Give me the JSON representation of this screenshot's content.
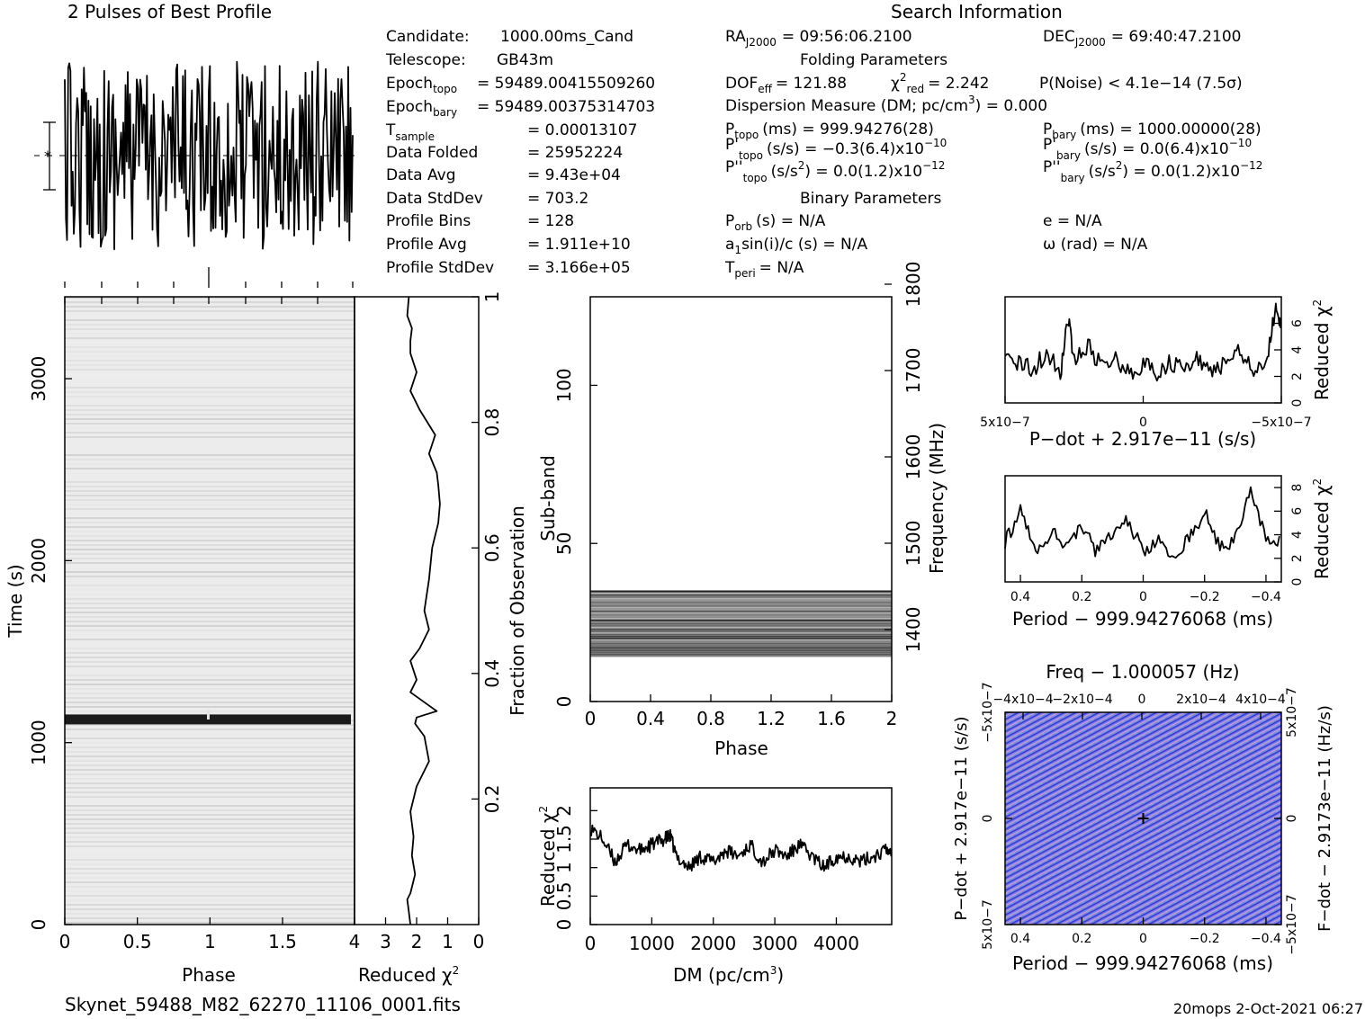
{
  "header": {
    "profile_title": "2 Pulses of Best Profile",
    "search_title": "Search Information"
  },
  "params_left": [
    {
      "label": "Candidate:",
      "value": "1000.00ms_Cand"
    },
    {
      "label": "Telescope:",
      "value": "GB43m"
    },
    {
      "label": "Epoch",
      "sub": "topo",
      "value": "= 59489.00415509260"
    },
    {
      "label": "Epoch",
      "sub": "bary",
      "value": "= 59489.00375314703"
    },
    {
      "label": "T",
      "sub": "sample",
      "value": "=   0.00013107"
    },
    {
      "label": "Data Folded",
      "value": "=   25952224"
    },
    {
      "label": "Data Avg",
      "value": "=   9.43e+04"
    },
    {
      "label": "Data StdDev",
      "value": "=   703.2"
    },
    {
      "label": "Profile Bins",
      "value": "=   128"
    },
    {
      "label": "Profile Avg",
      "value": "=   1.911e+10"
    },
    {
      "label": "Profile StdDev",
      "value": "=   3.166e+05"
    }
  ],
  "search_info": {
    "ra": "RA",
    "ra_sub": "J2000",
    "ra_value": "= 09:56:06.2100",
    "dec": "DEC",
    "dec_sub": "J2000",
    "dec_value": "= 69:40:47.2100",
    "folding_title": "Folding Parameters",
    "dof": "DOF",
    "dof_sub": "eff",
    "dof_value": "= 121.88",
    "chi": "χ",
    "chi_sup": "2",
    "chi_sub": "red",
    "chi_value": "= 2.242",
    "pnoise": "P(Noise) < 4.1e−14   (7.5σ)",
    "dm_line": "Dispersion Measure (DM; pc/cm",
    "dm_sup": "3",
    "dm_tail": ") = 0.000",
    "ptopo": "P",
    "ptopo_sub": "topo",
    "ptopo_value": "(ms)  =   999.94276(28)",
    "pbary": "P",
    "pbary_sub": "bary",
    "pbary_value": "(ms)  =   1000.00000(28)",
    "pdtopo": "P'",
    "pdtopo_sub": "topo",
    "pdtopo_value": "(s/s) = −0.3(6.4)x10",
    "pdtopo_exp": "−10",
    "pdbary": "P'",
    "pdbary_sub": "bary",
    "pdbary_value": "(s/s) = 0.0(6.4)x10",
    "pdbary_exp": "−10",
    "pddtopo": "P''",
    "pddtopo_sub": "topo",
    "pddtopo_value": "(s/s",
    "pddtopo_sup": "2",
    "pddtopo_tail": ") = 0.0(1.2)x10",
    "pddtopo_exp": "−12",
    "pddbary": "P''",
    "pddbary_sub": "bary",
    "pddbary_value": "(s/s",
    "pddbary_sup": "2",
    "pddbary_tail": ") = 0.0(1.2)x10",
    "pddbary_exp": "−12",
    "binary_title": "Binary Parameters",
    "porb": "P",
    "porb_sub": "orb",
    "porb_value": "(s) = N/A",
    "ecc": "e = N/A",
    "a1": "a",
    "a1_sub": "1",
    "a1_value": "sin(i)/c (s) = N/A",
    "omega": "ω (rad) = N/A",
    "tperi": "T",
    "tperi_sub": "peri",
    "tperi_value": "= N/A"
  },
  "footer": {
    "filename": "Skynet_59488_M82_62270_11106_0001.fits",
    "stamp": "20mops  2-Oct-2021 06:27"
  },
  "chart_data": [
    {
      "type": "line",
      "title": "2 Pulses of Best Profile",
      "xlim": [
        0,
        2
      ],
      "note_marker": "*"
    },
    {
      "type": "heatmap",
      "xlabel": "Phase",
      "ylabel": "Time (s)",
      "xlim": [
        0,
        2
      ],
      "ylim": [
        0,
        3450
      ],
      "xticks": [
        "0",
        "0.5",
        "1",
        "1.5"
      ],
      "yticks": [
        "0",
        "1000",
        "2000",
        "3000"
      ],
      "bright_row_time_s": 1130
    },
    {
      "type": "line",
      "xlabel": "Reduced χ2",
      "ylabel": "Fraction of Observation",
      "xlim": [
        4,
        0
      ],
      "ylim": [
        0,
        1
      ],
      "xticks": [
        "4",
        "3",
        "2",
        "1",
        "0"
      ],
      "yticks": [
        "0.2",
        "0.4",
        "0.6",
        "0.8",
        "1"
      ],
      "x": [
        2.2,
        2.25,
        2.3,
        2.2,
        2.1,
        2.05,
        2.15,
        2.1,
        2.2,
        2.0,
        1.6,
        1.75,
        2.05,
        2.0,
        1.35,
        2.2,
        2.0,
        2.2,
        1.9,
        1.6,
        1.75,
        1.6,
        1.5,
        1.3,
        1.25,
        1.3,
        1.35,
        1.6,
        1.4,
        1.9,
        2.2,
        2.0,
        2.2,
        2.2,
        2.15,
        2.3,
        2.25
      ],
      "y": [
        0.0,
        0.02,
        0.04,
        0.05,
        0.07,
        0.08,
        0.11,
        0.14,
        0.18,
        0.22,
        0.26,
        0.3,
        0.32,
        0.33,
        0.34,
        0.37,
        0.39,
        0.42,
        0.44,
        0.47,
        0.5,
        0.55,
        0.6,
        0.64,
        0.67,
        0.7,
        0.72,
        0.75,
        0.78,
        0.82,
        0.85,
        0.88,
        0.91,
        0.93,
        0.95,
        0.97,
        1.0
      ]
    },
    {
      "type": "heatmap",
      "xlabel": "Phase",
      "ylabel": "Sub-band",
      "y2label": "Frequency (MHz)",
      "xlim": [
        0,
        2
      ],
      "ylim": [
        0,
        128
      ],
      "xticks": [
        "0",
        "0.4",
        "0.8",
        "1.2",
        "1.6",
        "2"
      ],
      "yticks": [
        "0",
        "50",
        "100"
      ],
      "y2ticks": [
        "1400",
        "1500",
        "1600",
        "1700",
        "1800"
      ],
      "occupied_subbands": [
        14,
        35
      ]
    },
    {
      "type": "line",
      "xlabel": "DM (pc/cm3)",
      "ylabel": "Reduced χ2",
      "xlim": [
        0,
        4900
      ],
      "ylim": [
        0,
        2.4
      ],
      "xticks": [
        "0",
        "1000",
        "2000",
        "3000",
        "4000"
      ],
      "yticks": [
        "0",
        "0.5",
        "1",
        "1.5",
        "2"
      ],
      "x": [
        0,
        200,
        400,
        600,
        800,
        1000,
        1200,
        1300,
        1400,
        1600,
        1800,
        2000,
        2200,
        2400,
        2600,
        2800,
        3000,
        3200,
        3400,
        3600,
        3800,
        4000,
        4200,
        4400,
        4600,
        4800,
        4900
      ],
      "y": [
        1.7,
        1.5,
        1.1,
        1.4,
        1.3,
        1.4,
        1.5,
        1.55,
        1.2,
        1.0,
        1.2,
        1.1,
        1.3,
        1.2,
        1.4,
        1.1,
        1.3,
        1.2,
        1.4,
        1.2,
        1.0,
        1.2,
        1.2,
        1.1,
        1.2,
        1.3,
        1.3
      ]
    },
    {
      "type": "line",
      "xlabel": "P−dot + 2.917e−11 (s/s)",
      "ylabel": "Reduced χ2",
      "xlim": [
        5e-07,
        -5e-07
      ],
      "ylim": [
        0,
        8
      ],
      "xticks": [
        "5x10−7",
        "0",
        "−5x10−7"
      ],
      "yticks": [
        "0",
        "2",
        "4",
        "6"
      ],
      "x": [
        5e-07,
        4.5e-07,
        4e-07,
        3.5e-07,
        3e-07,
        2.7e-07,
        2.5e-07,
        2e-07,
        1.5e-07,
        1e-07,
        5e-08,
        0,
        -5e-08,
        -1e-07,
        -1.5e-07,
        -2e-07,
        -2.5e-07,
        -3e-07,
        -3.5e-07,
        -4e-07,
        -4.5e-07,
        -4.8e-07,
        -5e-07
      ],
      "y": [
        4.2,
        3.0,
        2.5,
        3.8,
        2.2,
        6.5,
        3.0,
        4.5,
        2.6,
        3.4,
        2.2,
        2.8,
        2.3,
        3.1,
        2.4,
        3.3,
        2.5,
        3.0,
        4.0,
        2.6,
        3.3,
        7.2,
        5.5
      ]
    },
    {
      "type": "line",
      "xlabel": "Period − 999.94276068 (ms)",
      "ylabel": "Reduced χ2",
      "xlim": [
        0.45,
        -0.45
      ],
      "ylim": [
        0,
        9
      ],
      "xticks": [
        "0.4",
        "0.2",
        "0",
        "−0.2",
        "−0.4"
      ],
      "yticks": [
        "0",
        "2",
        "4",
        "6",
        "8"
      ],
      "x": [
        0.45,
        0.4,
        0.35,
        0.3,
        0.25,
        0.2,
        0.15,
        0.1,
        0.05,
        0.0,
        -0.05,
        -0.1,
        -0.15,
        -0.2,
        -0.25,
        -0.3,
        -0.35,
        -0.4,
        -0.45
      ],
      "y": [
        3.5,
        6.0,
        2.8,
        4.2,
        3.0,
        4.5,
        2.6,
        4.0,
        5.2,
        2.6,
        3.4,
        2.4,
        3.8,
        6.0,
        2.8,
        3.6,
        8.2,
        3.2,
        3.4
      ]
    },
    {
      "type": "heatmap",
      "title": "Freq − 1.000057 (Hz)",
      "xlabel": "Period − 999.94276068 (ms)",
      "ylabel": "P−dot + 2.917e−11 (s/s)",
      "y2label": "F−dot − 2.9173e−11 (Hz/s)",
      "xlim": [
        0.45,
        -0.45
      ],
      "ylim": [
        5e-07,
        -5e-07
      ],
      "xticks": [
        "0.4",
        "0.2",
        "0",
        "−0.2",
        "−0.4"
      ],
      "x2ticks": [
        "−4x10−4",
        "−2x10−4",
        "0",
        "2x10−4",
        "4x10−4"
      ],
      "yticks": [
        "5x10−7",
        "0",
        "−5x10−7"
      ],
      "y2ticks": [
        "−5x10−7",
        "0",
        "5x10−7"
      ],
      "best_point": [
        0,
        0
      ]
    }
  ]
}
